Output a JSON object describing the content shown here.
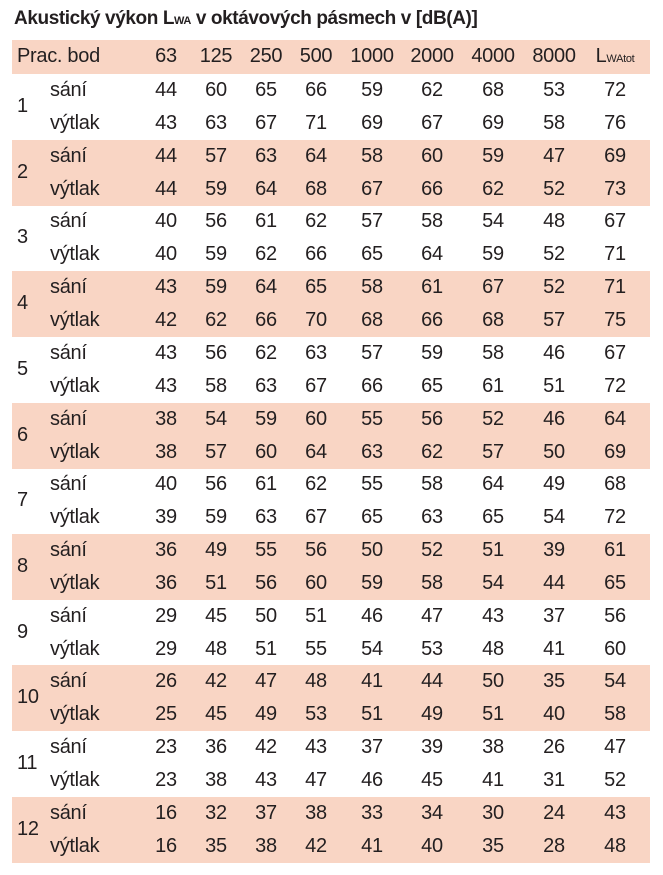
{
  "title": {
    "main": "Akustický výkon L",
    "sub": "WA",
    "rest": " v oktávových pásmech v [dB(A)]"
  },
  "header": {
    "point_label": "Prac. bod",
    "bands": [
      "63",
      "125",
      "250",
      "500",
      "1000",
      "2000",
      "4000",
      "8000"
    ],
    "total_main": "L",
    "total_sub": "WAtot"
  },
  "colors": {
    "band_fill": "#f9d5c4",
    "text": "#231f20"
  },
  "row_labels": {
    "intake": "sání",
    "discharge": "výtlak"
  },
  "groups": [
    {
      "point": "1",
      "intake": [
        44,
        60,
        65,
        66,
        59,
        62,
        68,
        53,
        72
      ],
      "discharge": [
        43,
        63,
        67,
        71,
        69,
        67,
        69,
        58,
        76
      ]
    },
    {
      "point": "2",
      "intake": [
        44,
        57,
        63,
        64,
        58,
        60,
        59,
        47,
        69
      ],
      "discharge": [
        44,
        59,
        64,
        68,
        67,
        66,
        62,
        52,
        73
      ]
    },
    {
      "point": "3",
      "intake": [
        40,
        56,
        61,
        62,
        57,
        58,
        54,
        48,
        67
      ],
      "discharge": [
        40,
        59,
        62,
        66,
        65,
        64,
        59,
        52,
        71
      ]
    },
    {
      "point": "4",
      "intake": [
        43,
        59,
        64,
        65,
        58,
        61,
        67,
        52,
        71
      ],
      "discharge": [
        42,
        62,
        66,
        70,
        68,
        66,
        68,
        57,
        75
      ]
    },
    {
      "point": "5",
      "intake": [
        43,
        56,
        62,
        63,
        57,
        59,
        58,
        46,
        67
      ],
      "discharge": [
        43,
        58,
        63,
        67,
        66,
        65,
        61,
        51,
        72
      ]
    },
    {
      "point": "6",
      "intake": [
        38,
        54,
        59,
        60,
        55,
        56,
        52,
        46,
        64
      ],
      "discharge": [
        38,
        57,
        60,
        64,
        63,
        62,
        57,
        50,
        69
      ]
    },
    {
      "point": "7",
      "intake": [
        40,
        56,
        61,
        62,
        55,
        58,
        64,
        49,
        68
      ],
      "discharge": [
        39,
        59,
        63,
        67,
        65,
        63,
        65,
        54,
        72
      ]
    },
    {
      "point": "8",
      "intake": [
        36,
        49,
        55,
        56,
        50,
        52,
        51,
        39,
        61
      ],
      "discharge": [
        36,
        51,
        56,
        60,
        59,
        58,
        54,
        44,
        65
      ]
    },
    {
      "point": "9",
      "intake": [
        29,
        45,
        50,
        51,
        46,
        47,
        43,
        37,
        56
      ],
      "discharge": [
        29,
        48,
        51,
        55,
        54,
        53,
        48,
        41,
        60
      ]
    },
    {
      "point": "10",
      "intake": [
        26,
        42,
        47,
        48,
        41,
        44,
        50,
        35,
        54
      ],
      "discharge": [
        25,
        45,
        49,
        53,
        51,
        49,
        51,
        40,
        58
      ]
    },
    {
      "point": "11",
      "intake": [
        23,
        36,
        42,
        43,
        37,
        39,
        38,
        26,
        47
      ],
      "discharge": [
        23,
        38,
        43,
        47,
        46,
        45,
        41,
        31,
        52
      ]
    },
    {
      "point": "12",
      "intake": [
        16,
        32,
        37,
        38,
        33,
        34,
        30,
        24,
        43
      ],
      "discharge": [
        16,
        35,
        38,
        42,
        41,
        40,
        35,
        28,
        48
      ]
    }
  ]
}
